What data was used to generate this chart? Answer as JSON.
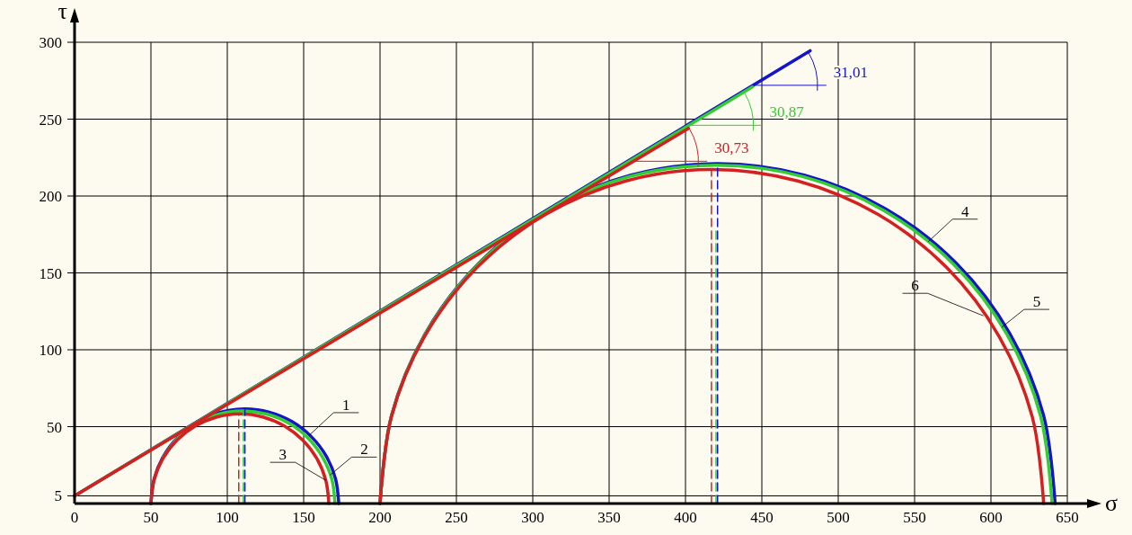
{
  "chart_data": {
    "type": "line",
    "xlabel": "σ",
    "ylabel": "τ",
    "xlim": [
      0,
      650
    ],
    "ylim": [
      0,
      300
    ],
    "xticks": [
      0,
      50,
      100,
      150,
      200,
      250,
      300,
      350,
      400,
      450,
      500,
      550,
      600,
      650
    ],
    "yticks": [
      5,
      50,
      100,
      150,
      200,
      250,
      300
    ],
    "grid": true,
    "series": [
      {
        "name": "1",
        "color": "#1414c8",
        "x": [
          50,
          52.1,
          58.2,
          68.0,
          80.8,
          95.6,
          111.5,
          127.4,
          142.3,
          155.0,
          164.8,
          170.9,
          173
        ],
        "values": [
          0,
          15.9,
          30.8,
          43.5,
          53.3,
          59.4,
          61.5,
          59.4,
          53.3,
          43.5,
          30.8,
          15.9,
          0
        ]
      },
      {
        "name": "2",
        "color": "#33cc33",
        "x": [
          58.1,
          67.6,
          80.1,
          94.7,
          110.3,
          125.8,
          140.4,
          152.9,
          162.4,
          168.5,
          170.5
        ],
        "values": [
          30.1,
          42.6,
          52.2,
          58.2,
          60.3,
          58.2,
          52.2,
          42.6,
          30.1,
          15.6,
          0
        ]
      },
      {
        "name": "3",
        "color": "#d42020",
        "x": [
          50,
          52.0,
          57.8,
          67.1,
          79.1,
          93.2,
          108.3,
          123.3,
          137.4,
          149.4,
          158.7,
          164.5,
          166.5
        ],
        "values": [
          0,
          15.1,
          29.1,
          41.2,
          50.4,
          56.3,
          58.3,
          56.3,
          50.4,
          41.2,
          29.1,
          15.1,
          0
        ]
      },
      {
        "name": "4",
        "color": "#1414c8",
        "x": [
          200,
          207.5,
          229.6,
          264.7,
          310.5,
          363.8,
          421,
          478.2,
          531.5,
          577.3,
          612.4,
          634.5,
          642
        ],
        "values": [
          0,
          57.2,
          110.5,
          156.3,
          191.4,
          213.5,
          221,
          213.5,
          191.4,
          156.3,
          110.5,
          57.2,
          0
        ]
      },
      {
        "name": "5",
        "color": "#33cc33",
        "x": [
          200,
          207.5,
          229.5,
          264.4,
          310,
          362.6,
          420,
          477.4,
          530,
          575.6,
          610.5,
          632.5,
          640
        ],
        "values": [
          0,
          56.9,
          110,
          155.6,
          190.5,
          212.5,
          220,
          212.5,
          190.5,
          155.6,
          110,
          56.9,
          0
        ]
      },
      {
        "name": "6",
        "color": "#d42020",
        "x": [
          200,
          207.4,
          229.1,
          263.6,
          308.6,
          361.0,
          417.3,
          473.5,
          525.9,
          570.9,
          605.4,
          627.1,
          634.5
        ],
        "values": [
          0,
          56.2,
          108.6,
          153.6,
          188.1,
          209.8,
          217.3,
          209.8,
          188.1,
          153.6,
          108.6,
          56.2,
          0
        ]
      },
      {
        "color": "#d42020",
        "line_style": "dashed",
        "x": [
          107.5,
          107.5
        ],
        "values": [
          0,
          58
        ]
      },
      {
        "color": "#33cc33",
        "line_style": "dashed",
        "x": [
          110.5,
          110.5
        ],
        "values": [
          0,
          60
        ]
      },
      {
        "color": "#1414c8",
        "line_style": "dashed",
        "x": [
          111.5,
          111.5
        ],
        "values": [
          0,
          61
        ]
      },
      {
        "color": "#d42020",
        "line_style": "dashed",
        "x": [
          417,
          417
        ],
        "values": [
          0,
          217
        ]
      },
      {
        "color": "#33cc33",
        "line_style": "dashed",
        "x": [
          420,
          420
        ],
        "values": [
          0,
          178
        ]
      },
      {
        "color": "#1414c8",
        "line_style": "dashed",
        "x": [
          421,
          421
        ],
        "values": [
          0,
          221
        ]
      },
      {
        "color": "#1414c8",
        "x": [
          0,
          481.6
        ],
        "values": [
          5,
          294.5
        ]
      },
      {
        "color": "#33cc33",
        "x": [
          0,
          444
        ],
        "values": [
          5,
          271
        ]
      },
      {
        "color": "#d42020",
        "x": [
          0,
          402
        ],
        "values": [
          5,
          244
        ]
      }
    ],
    "annotations": [
      {
        "text": "31,01",
        "x": 444,
        "y": 272
      },
      {
        "text": "30,87",
        "x": 402,
        "y": 246
      },
      {
        "text": "30,73",
        "x": 366,
        "y": 222.6
      }
    ]
  }
}
